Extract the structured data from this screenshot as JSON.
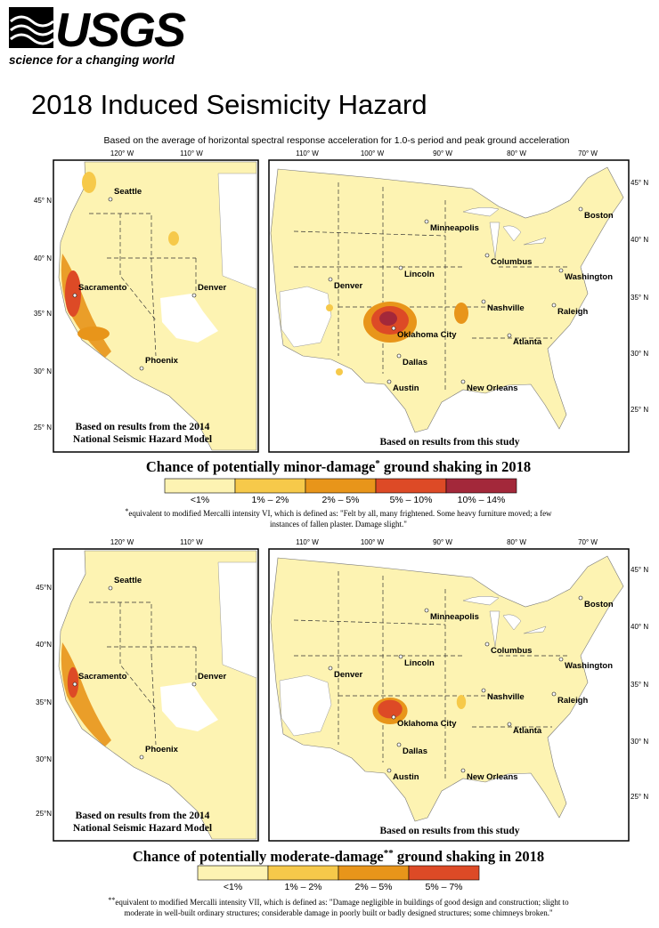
{
  "header": {
    "logo": "USGS",
    "tagline": "science for a changing world"
  },
  "title": "2018 Induced Seismicity Hazard",
  "subtitle": "Based on the average of horizontal spectral response acceleration for 1.0-s period and peak ground acceleration",
  "panels": [
    {
      "west_map": {
        "lon_labels": [
          "120° W",
          "110° W"
        ],
        "lat_labels": [
          "45° N",
          "40° N",
          "35° N",
          "30° N",
          "25° N"
        ],
        "cities": [
          "Seattle",
          "Sacramento",
          "Denver",
          "Phoenix"
        ],
        "note": [
          "Based on results from the 2014",
          "National Seismic Hazard Model"
        ]
      },
      "conus_map": {
        "lon_labels": [
          "110° W",
          "100° W",
          "90° W",
          "80° W",
          "70° W"
        ],
        "lat_labels": [
          "45° N",
          "40° N",
          "35° N",
          "30° N",
          "25° N"
        ],
        "cities": [
          "Minneapolis",
          "Boston",
          "Denver",
          "Lincoln",
          "Columbus",
          "Washington",
          "Nashville",
          "Raleigh",
          "Oklahoma City",
          "Atlanta",
          "Dallas",
          "Austin",
          "New Orleans"
        ],
        "note": "Based on results from this study"
      },
      "legend_title": {
        "text": "Chance of potentially minor-damage",
        "mark": "*",
        "rest": " ground shaking in 2018"
      },
      "legend": [
        {
          "label": "<1%",
          "color": "#fdf3b2"
        },
        {
          "label": "1% – 2%",
          "color": "#f6c94a"
        },
        {
          "label": "2% – 5%",
          "color": "#e8951a"
        },
        {
          "label": "5% – 10%",
          "color": "#dd4a26"
        },
        {
          "label": "10% – 14%",
          "color": "#a3283a"
        }
      ],
      "footnote": {
        "mark": "*",
        "lines": [
          "equivalent to modified Mercalli intensity VI, which is defined as: \"Felt by all, many frightened.  Some heavy furniture moved; a few",
          "instances of fallen plaster. Damage slight.\""
        ]
      }
    },
    {
      "west_map": {
        "lon_labels": [
          "120° W",
          "110° W"
        ],
        "lat_labels": [
          "45°N",
          "40°N",
          "35°N",
          "30°N",
          "25°N"
        ],
        "cities": [
          "Seattle",
          "Sacramento",
          "Denver",
          "Phoenix"
        ],
        "note": [
          "Based on results from the 2014",
          "National Seismic Hazard Model"
        ]
      },
      "conus_map": {
        "lon_labels": [
          "110° W",
          "100° W",
          "90° W",
          "80° W",
          "70° W"
        ],
        "lat_labels": [
          "45° N",
          "40° N",
          "35° N",
          "30° N",
          "25° N"
        ],
        "cities": [
          "Minneapolis",
          "Boston",
          "Denver",
          "Lincoln",
          "Columbus",
          "Washington",
          "Nashville",
          "Raleigh",
          "Oklahoma City",
          "Atlanta",
          "Dallas",
          "Austin",
          "New Orleans"
        ],
        "note": "Based on results from this study"
      },
      "legend_title": {
        "text": "Chance of potentially moderate-damage",
        "mark": "**",
        "rest": " ground shaking in 2018"
      },
      "legend": [
        {
          "label": "<1%",
          "color": "#fdf3b2"
        },
        {
          "label": "1% – 2%",
          "color": "#f6c94a"
        },
        {
          "label": "2% – 5%",
          "color": "#e8951a"
        },
        {
          "label": "5% – 7%",
          "color": "#dd4a26"
        }
      ],
      "footnote": {
        "mark": "**",
        "lines": [
          "equivalent to modified Mercalli intensity VII, which is defined as: \"Damage negligible in buildings of good design and construction; slight to",
          "moderate in well-built ordinary structures; considerable damage in poorly built or badly designed structures; some chimneys broken.\""
        ]
      }
    }
  ]
}
